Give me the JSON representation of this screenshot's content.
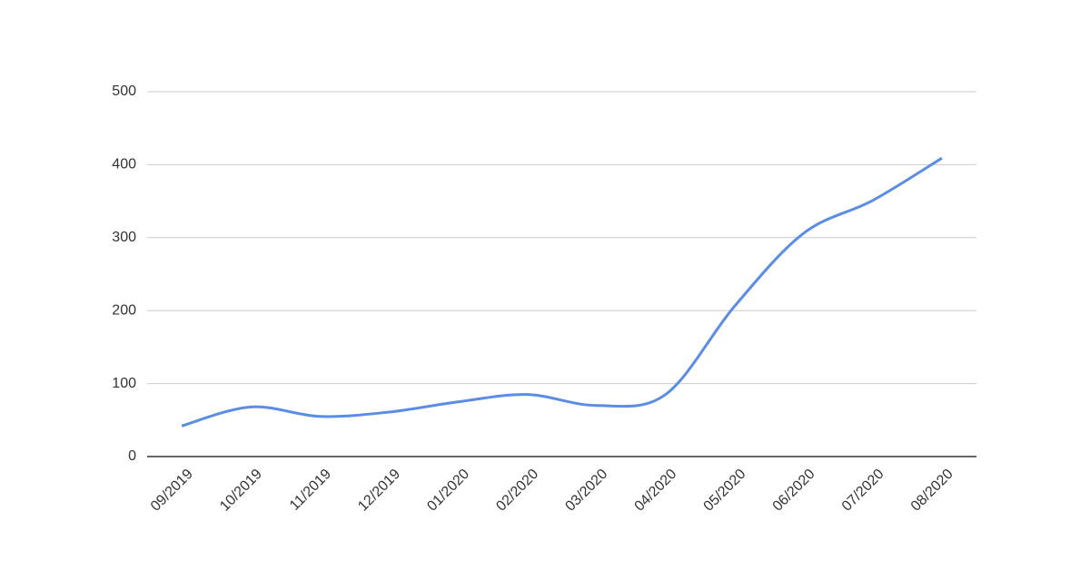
{
  "chart_data": {
    "type": "line",
    "categories": [
      "09/2019",
      "10/2019",
      "11/2019",
      "12/2019",
      "01/2020",
      "02/2020",
      "03/2020",
      "04/2020",
      "05/2020",
      "06/2020",
      "07/2020",
      "08/2020"
    ],
    "series": [
      {
        "color": "#5a8de3",
        "values": [
          42,
          68,
          55,
          61,
          75,
          85,
          70,
          85,
          206,
          306,
          351,
          409
        ]
      }
    ],
    "ylim": [
      0,
      500
    ],
    "yticks": [
      0,
      100,
      200,
      300,
      400,
      500
    ],
    "grid": true,
    "smooth": true
  }
}
